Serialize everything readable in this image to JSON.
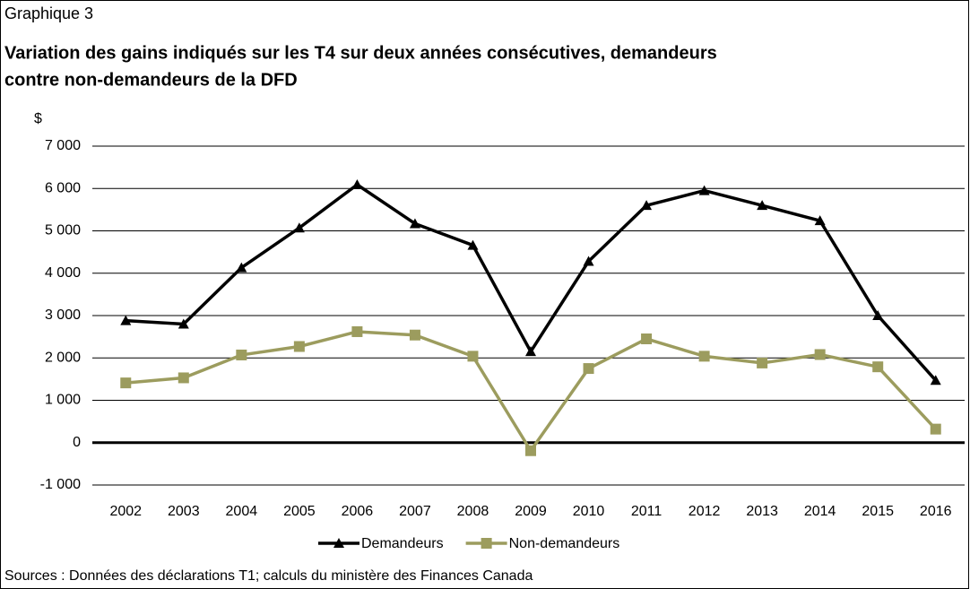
{
  "chart_data": {
    "type": "line",
    "figure_label": "Graphique 3",
    "title": [
      "Variation des gains indiqués sur les T4 sur deux années consécutives, demandeurs",
      "contre non-demandeurs de la DFD"
    ],
    "y_label": "$",
    "source": "Sources : Données des déclarations T1; calculs du ministère des Finances Canada",
    "categories": [
      "2002",
      "2003",
      "2004",
      "2005",
      "2006",
      "2007",
      "2008",
      "2009",
      "2010",
      "2011",
      "2012",
      "2013",
      "2014",
      "2015",
      "2016"
    ],
    "series": [
      {
        "name": "Demandeurs",
        "color": "#000000",
        "marker": "triangle",
        "values": [
          2880,
          2800,
          4130,
          5070,
          6090,
          5170,
          4660,
          2150,
          4280,
          5600,
          5950,
          5600,
          5240,
          3000,
          1470
        ]
      },
      {
        "name": "Non-demandeurs",
        "color": "#9c9c5e",
        "marker": "square",
        "values": [
          1410,
          1530,
          2070,
          2270,
          2620,
          2540,
          2040,
          -190,
          1750,
          2450,
          2040,
          1880,
          2080,
          1790,
          320
        ]
      }
    ],
    "ylim": [
      -1000,
      7000
    ],
    "yticks": [
      {
        "value": -1000,
        "label": "-1 000"
      },
      0,
      {
        "value": 1000,
        "label": "1 000"
      },
      {
        "value": 2000,
        "label": "2 000"
      },
      {
        "value": 3000,
        "label": "3 000"
      },
      {
        "value": 4000,
        "label": "4 000"
      },
      {
        "value": 5000,
        "label": "5 000"
      },
      {
        "value": 6000,
        "label": "6 000"
      },
      {
        "value": 7000,
        "label": "7 000"
      }
    ],
    "grid": true,
    "legend": "bottom"
  }
}
